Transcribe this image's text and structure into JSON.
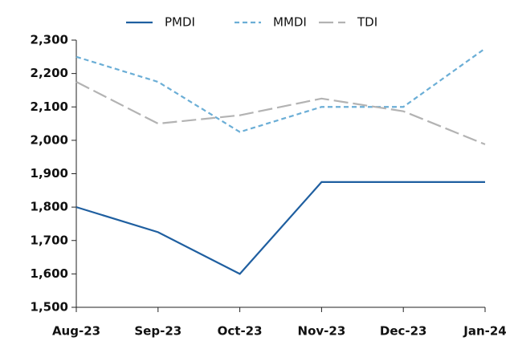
{
  "chart_data": {
    "type": "line",
    "categories": [
      "Aug-23",
      "Sep-23",
      "Oct-23",
      "Nov-23",
      "Dec-23",
      "Jan-24"
    ],
    "series": [
      {
        "name": "PMDI",
        "color": "#1f5fa0",
        "style": "solid",
        "values": [
          1800,
          1725,
          1600,
          1875,
          1875,
          1875
        ]
      },
      {
        "name": "MMDI",
        "color": "#6baed6",
        "style": "dashed",
        "values": [
          2250,
          2175,
          2025,
          2100,
          2100,
          2275
        ]
      },
      {
        "name": "TDI",
        "color": "#b3b3b3",
        "style": "longdash",
        "values": [
          2175,
          2050,
          2075,
          2125,
          2087,
          1988
        ]
      }
    ],
    "ylim": [
      1500,
      2300
    ],
    "yticks": [
      {
        "value": 1500,
        "label": "1,500"
      },
      {
        "value": 1600,
        "label": "1,600"
      },
      {
        "value": 1700,
        "label": "1,700"
      },
      {
        "value": 1800,
        "label": "1,800"
      },
      {
        "value": 1900,
        "label": "1,900"
      },
      {
        "value": 2000,
        "label": "2,000"
      },
      {
        "value": 2100,
        "label": "2,100"
      },
      {
        "value": 2200,
        "label": "2,200"
      },
      {
        "value": 2300,
        "label": "2,300"
      }
    ],
    "legend": "top"
  }
}
